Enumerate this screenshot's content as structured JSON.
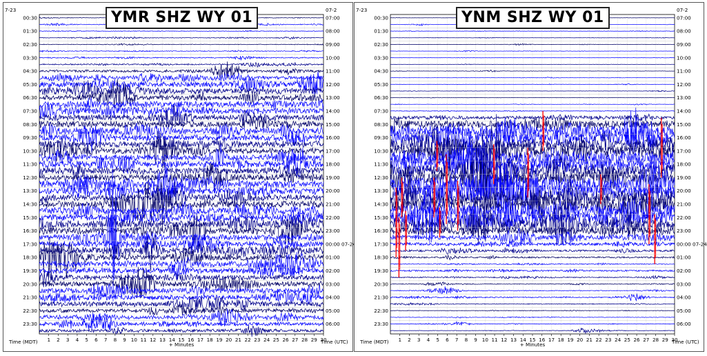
{
  "colors": {
    "trace_cycle": [
      "#000000",
      "#cc0000",
      "#0000ff",
      "#00008b"
    ],
    "clip": "#ff0000",
    "grid": "#bbbbbb",
    "trace_dark": "#000066",
    "trace_blue": "#1010ff"
  },
  "chart_data": [
    {
      "type": "helicorder",
      "title": "YMR SHZ WY 01",
      "date_left": "7-23",
      "date_right": "07-2",
      "left_axis_label": "Time (MDT)",
      "right_axis_label": "Time (UTC)",
      "x_label": "+ Minutes",
      "x_ticks": [
        "1",
        "2",
        "3",
        "4",
        "5",
        "6",
        "7",
        "8",
        "9",
        "10",
        "11",
        "12",
        "13",
        "14",
        "15",
        "16",
        "17",
        "18",
        "19",
        "20",
        "21",
        "22",
        "23",
        "24",
        "25",
        "26",
        "27",
        "28",
        "29",
        "30"
      ],
      "xlim": [
        0,
        30
      ],
      "left_row_labels": [
        "00:30",
        "01:30",
        "02:30",
        "03:30",
        "04:30",
        "05:30",
        "06:30",
        "07:30",
        "08:30",
        "09:30",
        "10:30",
        "11:30",
        "12:30",
        "13:30",
        "14:30",
        "15:30",
        "16:30",
        "17:30",
        "18:30",
        "19:30",
        "20:30",
        "21:30",
        "22:30",
        "23:30"
      ],
      "right_row_labels": [
        "07:00",
        "08:00",
        "09:00",
        "10:00",
        "11:00",
        "12:00",
        "13:00",
        "14:00",
        "15:00",
        "16:00",
        "17:00",
        "18:00",
        "19:00",
        "20:00",
        "21:00",
        "22:00",
        "23:00",
        "00:00 07-24",
        "01:00",
        "02:00",
        "03:00",
        "04:00",
        "05:00",
        "06:00"
      ],
      "line_count": 48,
      "line_amplitude": [
        0.1,
        0.15,
        0.1,
        0.12,
        0.12,
        0.15,
        0.2,
        0.25,
        0.5,
        0.7,
        1.1,
        1.2,
        1.0,
        1.2,
        1.1,
        1.2,
        1.2,
        1.3,
        1.2,
        1.3,
        1.1,
        1.2,
        1.3,
        1.3,
        1.2,
        1.4,
        1.3,
        1.2,
        1.3,
        1.3,
        1.2,
        1.4,
        1.3,
        1.2,
        1.1,
        1.3,
        1.1,
        1.2,
        1.1,
        1.0,
        1.0,
        1.0,
        0.9,
        1.0,
        0.8,
        0.8,
        0.7,
        0.6
      ],
      "clipped_events": []
    },
    {
      "type": "helicorder",
      "title": "YNM SHZ WY 01",
      "date_left": "7-23",
      "date_right": "07-2",
      "left_axis_label": "Time (MDT)",
      "right_axis_label": "Time (UTC)",
      "x_label": "+ Minutes",
      "x_ticks": [
        "1",
        "2",
        "3",
        "4",
        "5",
        "6",
        "7",
        "8",
        "9",
        "10",
        "11",
        "12",
        "13",
        "14",
        "15",
        "16",
        "17",
        "18",
        "19",
        "20",
        "21",
        "22",
        "23",
        "24",
        "25",
        "26",
        "27",
        "28",
        "29",
        "30"
      ],
      "xlim": [
        0,
        30
      ],
      "left_row_labels": [
        "00:30",
        "01:30",
        "02:30",
        "03:30",
        "04:30",
        "05:30",
        "06:30",
        "07:30",
        "08:30",
        "09:30",
        "10:30",
        "11:30",
        "12:30",
        "13:30",
        "14:30",
        "15:30",
        "16:30",
        "17:30",
        "18:30",
        "19:30",
        "20:30",
        "21:30",
        "22:30",
        "23:30"
      ],
      "right_row_labels": [
        "07:00",
        "08:00",
        "09:00",
        "10:00",
        "11:00",
        "12:00",
        "13:00",
        "14:00",
        "15:00",
        "16:00",
        "17:00",
        "18:00",
        "19:00",
        "20:00",
        "21:00",
        "22:00",
        "23:00",
        "00:00 07-24",
        "01:00",
        "02:00",
        "03:00",
        "04:00",
        "05:00",
        "06:00"
      ],
      "line_count": 48,
      "line_amplitude": [
        0.05,
        0.05,
        0.05,
        0.05,
        0.05,
        0.05,
        0.05,
        0.05,
        0.05,
        0.05,
        0.05,
        0.05,
        0.05,
        0.06,
        0.1,
        0.6,
        1.5,
        2.0,
        2.2,
        2.5,
        2.6,
        2.5,
        2.6,
        2.7,
        2.6,
        2.8,
        2.6,
        2.7,
        2.6,
        2.5,
        2.4,
        2.3,
        1.6,
        1.0,
        0.6,
        0.4,
        0.3,
        0.2,
        0.3,
        0.2,
        0.15,
        0.15,
        0.2,
        0.15,
        0.1,
        0.1,
        0.1,
        0.1
      ],
      "clipped_events": [
        {
          "row": 16,
          "minute": 16.1
        },
        {
          "row": 18,
          "minute": 28.6
        },
        {
          "row": 20,
          "minute": 4.9
        },
        {
          "row": 21,
          "minute": 10.9
        },
        {
          "row": 22,
          "minute": 14.5
        },
        {
          "row": 24,
          "minute": 5.9
        },
        {
          "row": 25,
          "minute": 22.2
        },
        {
          "row": 26,
          "minute": 1.2
        },
        {
          "row": 26,
          "minute": 4.6
        },
        {
          "row": 27,
          "minute": 7.1
        },
        {
          "row": 28,
          "minute": 27.3
        },
        {
          "row": 29,
          "minute": 0.6
        },
        {
          "row": 30,
          "minute": 5.2
        },
        {
          "row": 31,
          "minute": 1.6
        },
        {
          "row": 32,
          "minute": 27.9
        },
        {
          "row": 33,
          "minute": 0.9
        }
      ]
    }
  ]
}
